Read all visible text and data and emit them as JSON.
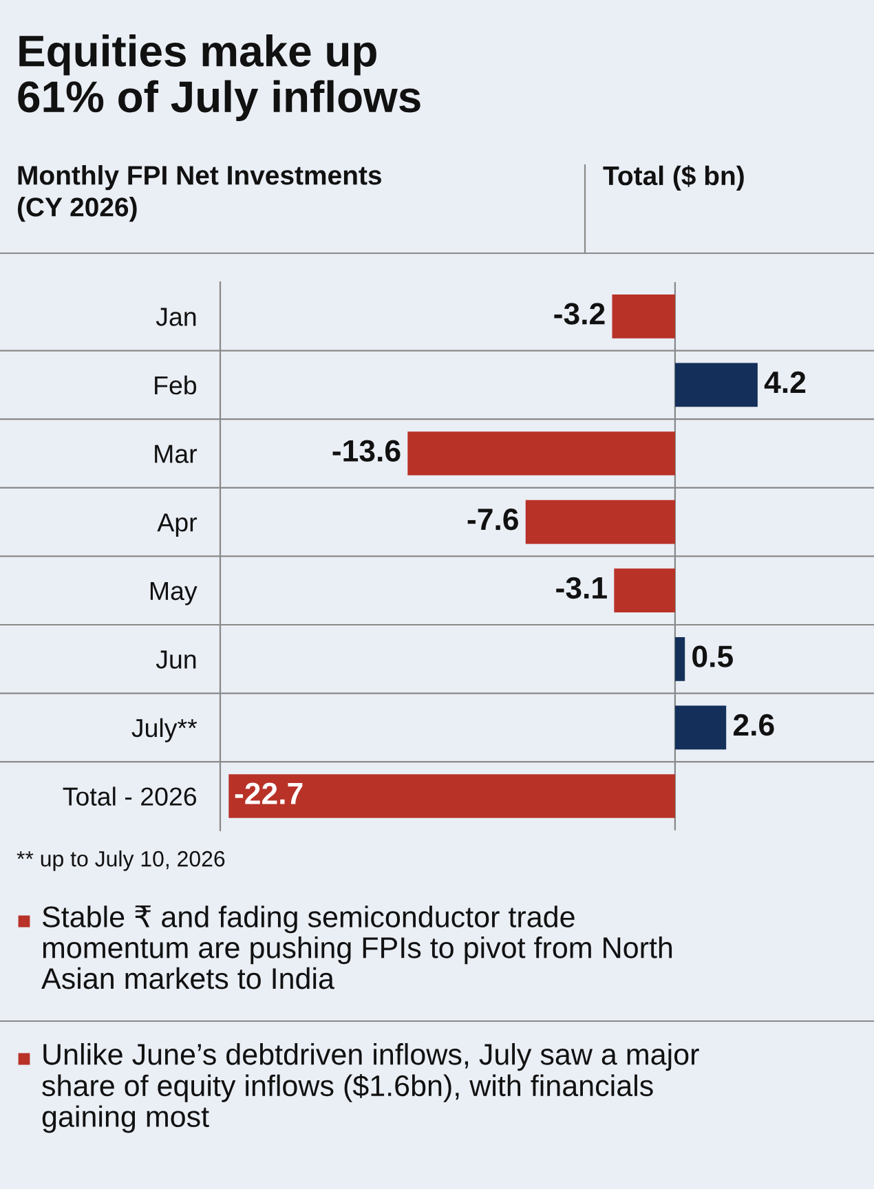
{
  "chart_data": {
    "type": "bar",
    "orientation": "horizontal",
    "title": "Equities make up\n61% of July inflows",
    "subtitle": "Monthly FPI Net Investments\n(CY 2026)",
    "xlabel": "Total ($ bn)",
    "categories": [
      "Jan",
      "Feb",
      "Mar",
      "Apr",
      "May",
      "Jun",
      "July**",
      "Total - 2026"
    ],
    "values": [
      -3.2,
      4.2,
      -13.6,
      -7.6,
      -3.1,
      0.5,
      2.6,
      -22.7
    ],
    "colors": [
      "#b83228",
      "#14305a",
      "#b83228",
      "#b83228",
      "#b83228",
      "#14305a",
      "#14305a",
      "#b83228"
    ],
    "data_labels": true,
    "grid": false,
    "legend": false,
    "tick_labels": "y",
    "annotations": [
      "** up to July 10, 2026",
      "Stable ₹ and fading semiconductor trade\nmomentum are pushing FPIs to pivot from North\nAsian markets to India",
      "Unlike June’s debtdriven inflows, July saw a major\nshare of equity inflows ($1.6bn), with financials\ngaining most"
    ]
  }
}
